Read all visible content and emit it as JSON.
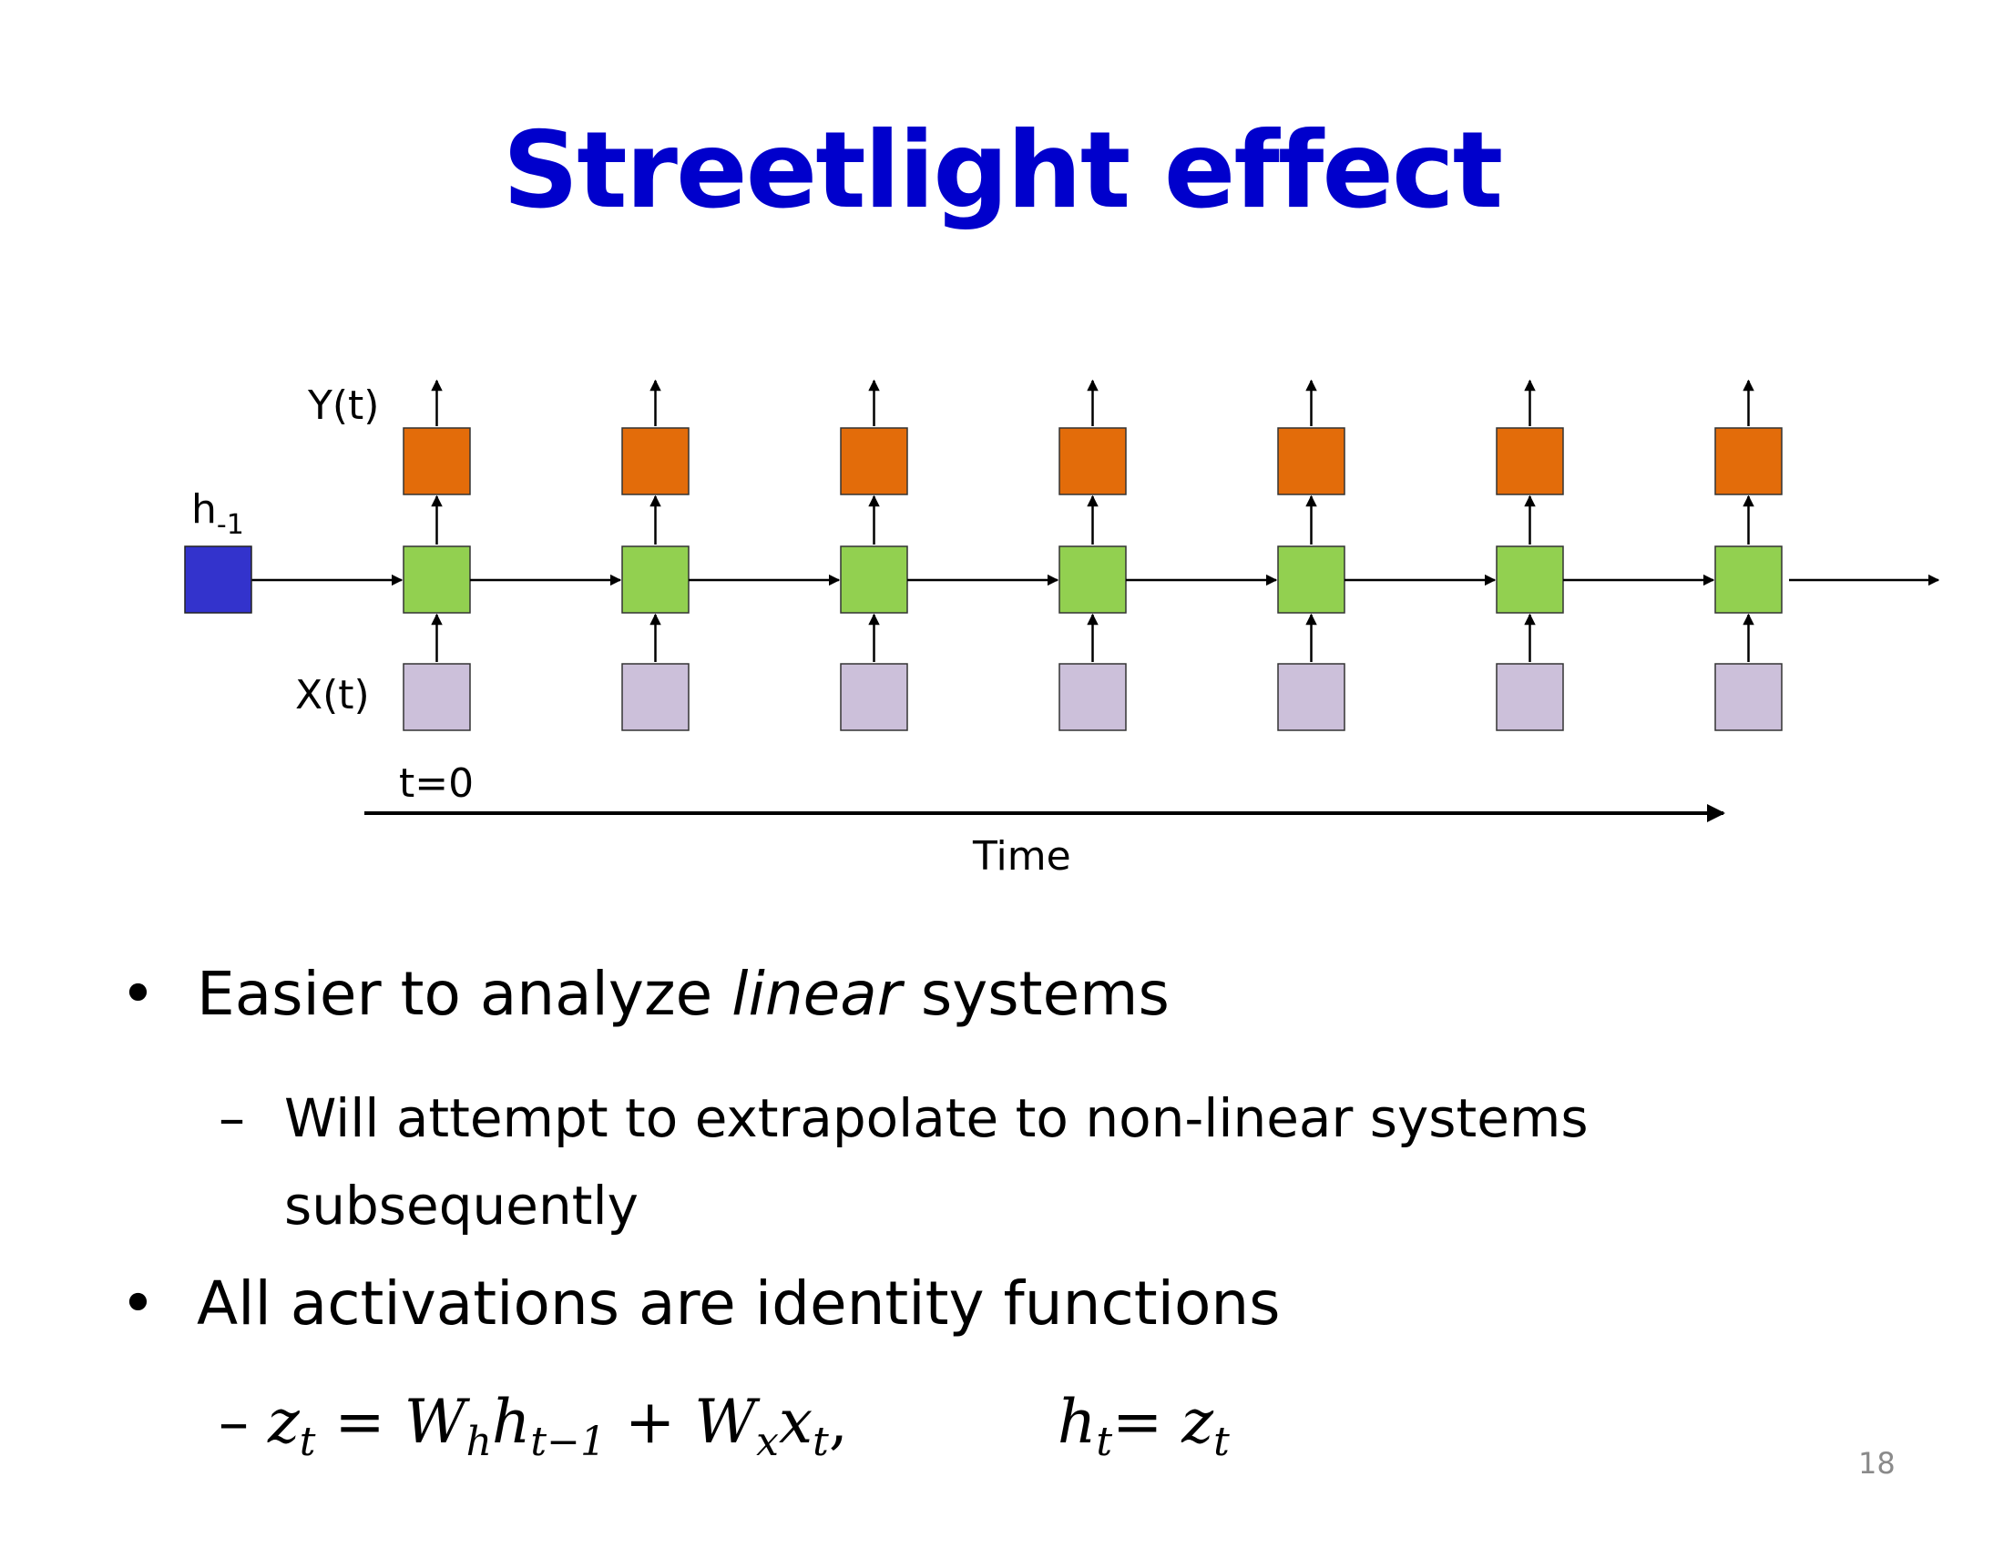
{
  "slide": {
    "title": "Streetlight effect",
    "page_number": "18"
  },
  "diagram": {
    "labels": {
      "output": "Y(t)",
      "input": "X(t)",
      "initial_state_base": "h",
      "initial_state_sub": "-1",
      "start": "t=0",
      "time_axis": "Time"
    },
    "colors": {
      "output_box": "#e36c0a",
      "hidden_box": "#92d050",
      "input_box": "#ccc0da",
      "initial_state_box": "#3333cc",
      "title": "#0000cc"
    },
    "timesteps": 7
  },
  "bullets": [
    {
      "level": 1,
      "marker": "•",
      "text_before": "Easier to analyze ",
      "text_italic": "linear",
      "text_after": " systems"
    },
    {
      "level": 2,
      "marker": "–",
      "text": "Will attempt to extrapolate to non-linear systems subsequently"
    },
    {
      "level": 1,
      "marker": "•",
      "text": "All activations are identity functions"
    },
    {
      "level": 2,
      "marker": "–",
      "equation": "z_t = W_h h_{t-1} + W_x x_t,    h_t = z_t"
    }
  ]
}
